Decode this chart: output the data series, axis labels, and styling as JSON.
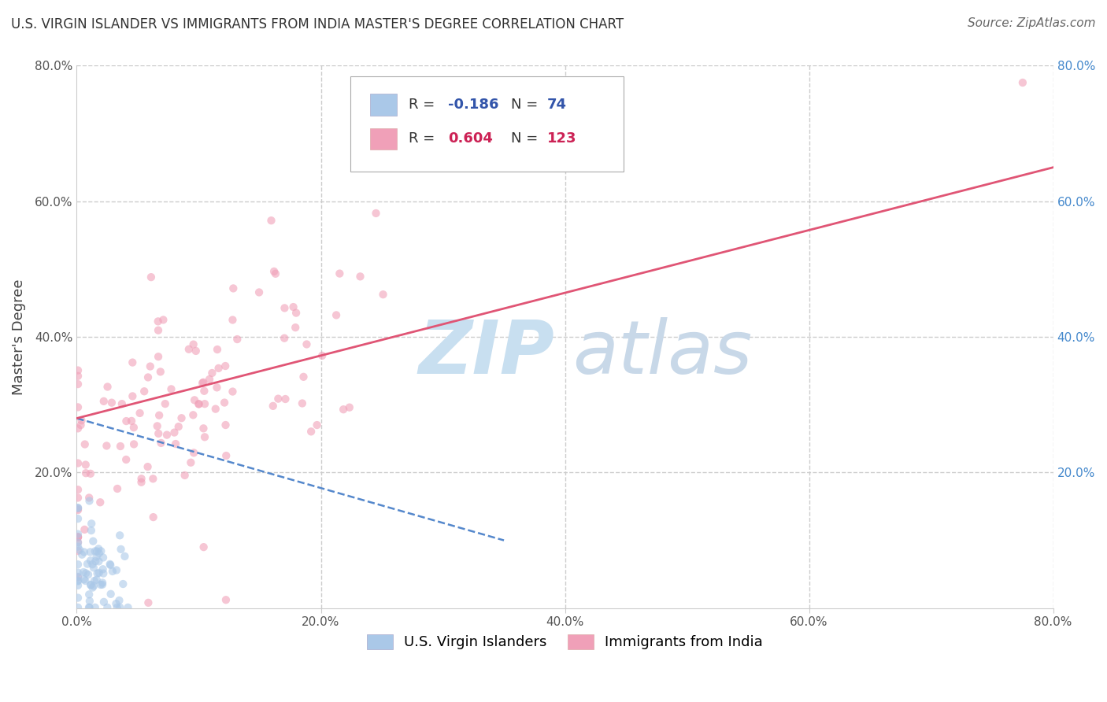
{
  "title": "U.S. VIRGIN ISLANDER VS IMMIGRANTS FROM INDIA MASTER'S DEGREE CORRELATION CHART",
  "source_text": "Source: ZipAtlas.com",
  "ylabel": "Master's Degree",
  "xlabel": "",
  "xlim": [
    0.0,
    0.8
  ],
  "ylim": [
    0.0,
    0.8
  ],
  "xticks": [
    0.0,
    0.2,
    0.4,
    0.6,
    0.8
  ],
  "yticks": [
    0.0,
    0.2,
    0.4,
    0.6,
    0.8
  ],
  "xticklabels": [
    "0.0%",
    "20.0%",
    "40.0%",
    "60.0%",
    "80.0%"
  ],
  "yticklabels": [
    "",
    "20.0%",
    "40.0%",
    "60.0%",
    "80.0%"
  ],
  "right_yticklabels": [
    "",
    "20.0%",
    "40.0%",
    "60.0%",
    "80.0%"
  ],
  "series1_label": "U.S. Virgin Islanders",
  "series1_color": "#aac8e8",
  "series1_R": -0.186,
  "series1_N": 74,
  "series2_label": "Immigrants from India",
  "series2_color": "#f0a0b8",
  "series2_R": 0.604,
  "series2_N": 123,
  "watermark_zip_color": "#c8dff0",
  "watermark_atlas_color": "#c8d8e8",
  "background_color": "#ffffff",
  "grid_color": "#cccccc",
  "title_fontsize": 12,
  "axis_label_fontsize": 13,
  "tick_fontsize": 11,
  "legend_fontsize": 13,
  "source_fontsize": 11,
  "scatter_alpha": 0.6,
  "scatter_size": 55,
  "line1_color": "#5588cc",
  "line2_color": "#e05575",
  "right_tick_color": "#4488cc"
}
